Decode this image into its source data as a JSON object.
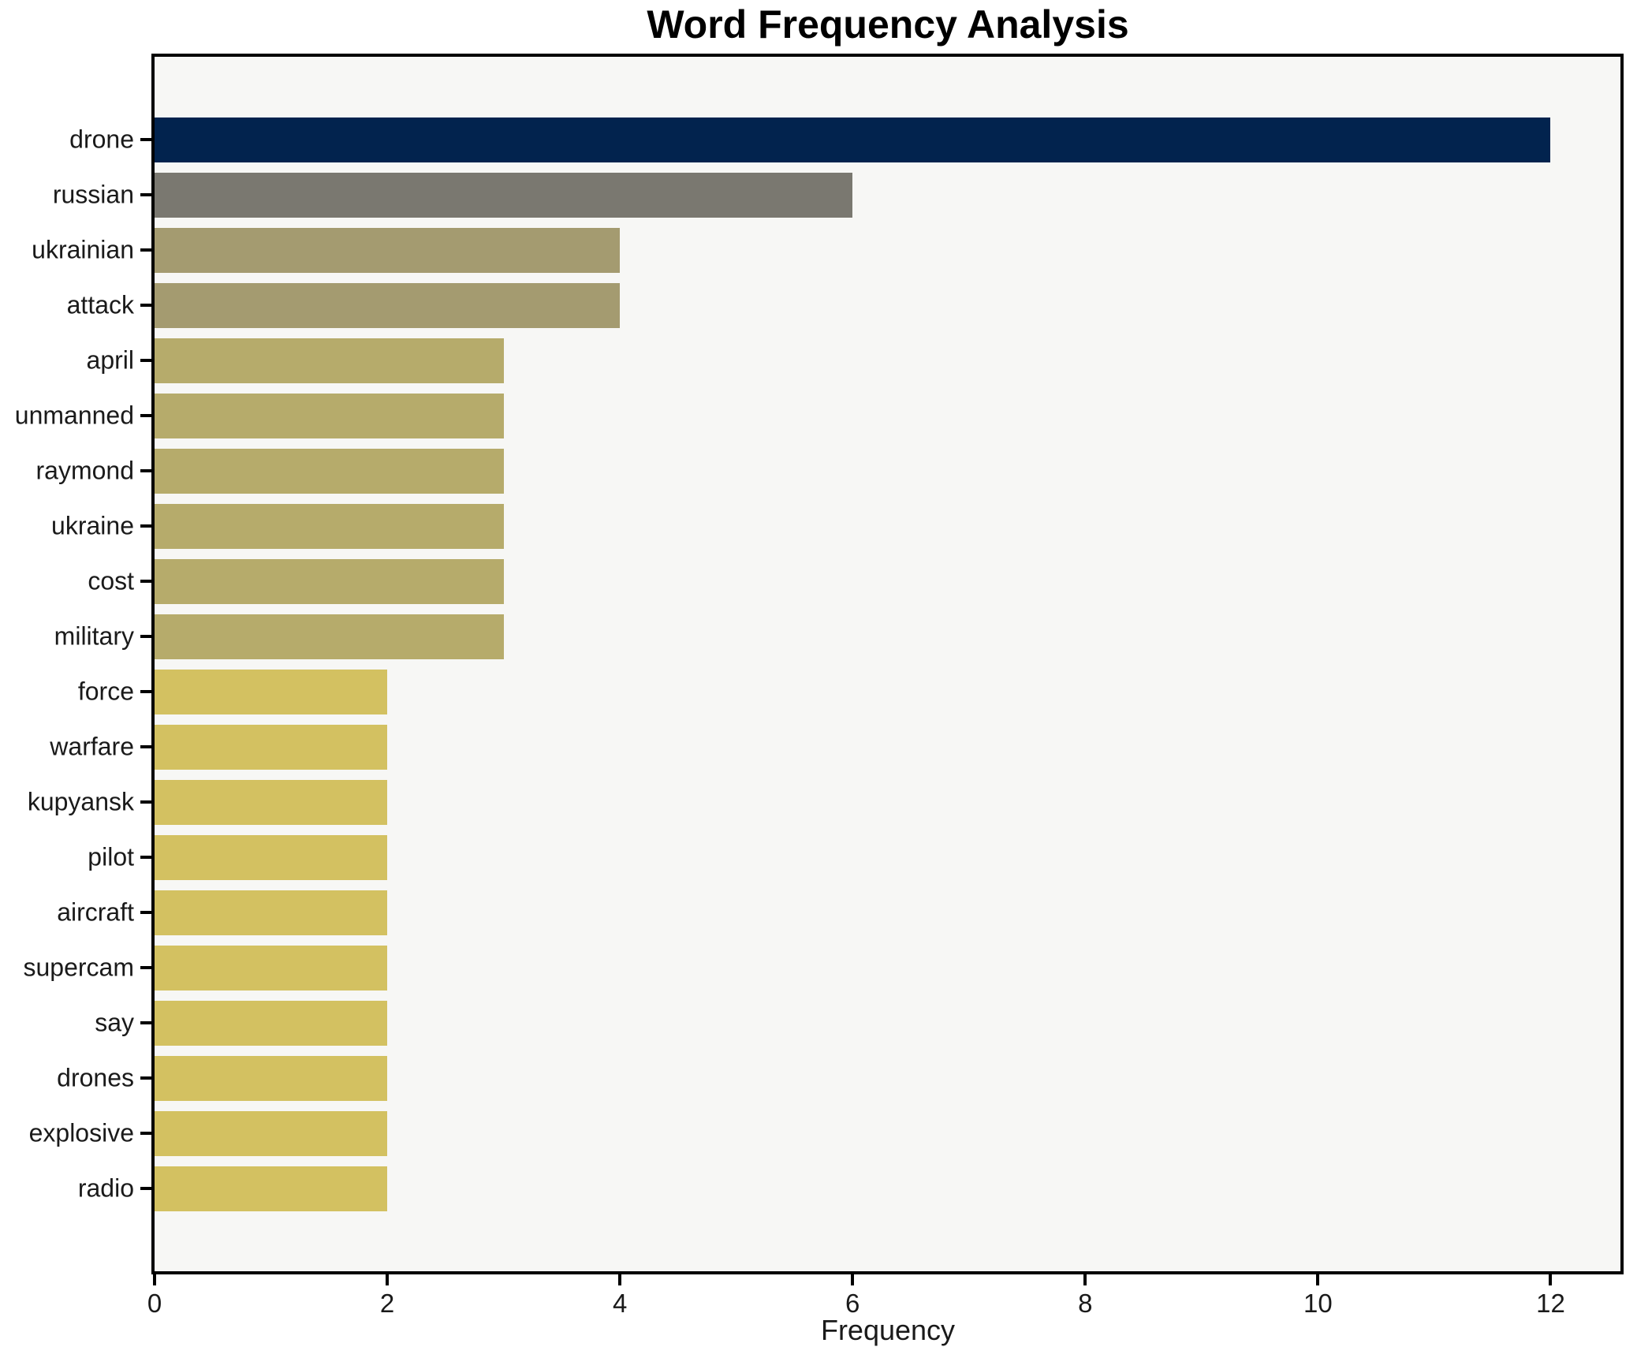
{
  "title": "Word Frequency Analysis",
  "chart_data": {
    "type": "bar",
    "orientation": "horizontal",
    "title": "Word Frequency Analysis",
    "xlabel": "Frequency",
    "ylabel": "",
    "categories": [
      "drone",
      "russian",
      "ukrainian",
      "attack",
      "april",
      "unmanned",
      "raymond",
      "ukraine",
      "cost",
      "military",
      "force",
      "warfare",
      "kupyansk",
      "pilot",
      "aircraft",
      "supercam",
      "say",
      "drones",
      "explosive",
      "radio"
    ],
    "values": [
      12,
      6,
      4,
      4,
      3,
      3,
      3,
      3,
      3,
      3,
      2,
      2,
      2,
      2,
      2,
      2,
      2,
      2,
      2,
      2
    ],
    "bar_colors": [
      "#02234e",
      "#7a7870",
      "#a49b70",
      "#a49b70",
      "#b6ab6b",
      "#b6ab6b",
      "#b6ab6b",
      "#b6ab6b",
      "#b6ab6b",
      "#b6ab6b",
      "#d3c161",
      "#d3c161",
      "#d3c161",
      "#d3c161",
      "#d3c161",
      "#d3c161",
      "#d3c161",
      "#d3c161",
      "#d3c161",
      "#d3c161"
    ],
    "xlim": [
      0,
      12.6
    ],
    "x_ticks": [
      0,
      2,
      4,
      6,
      8,
      10,
      12
    ],
    "grid": false,
    "legend": "none",
    "plot_background": "#f7f7f5",
    "figure_background": "#ffffff",
    "spine_color": "#000000"
  }
}
